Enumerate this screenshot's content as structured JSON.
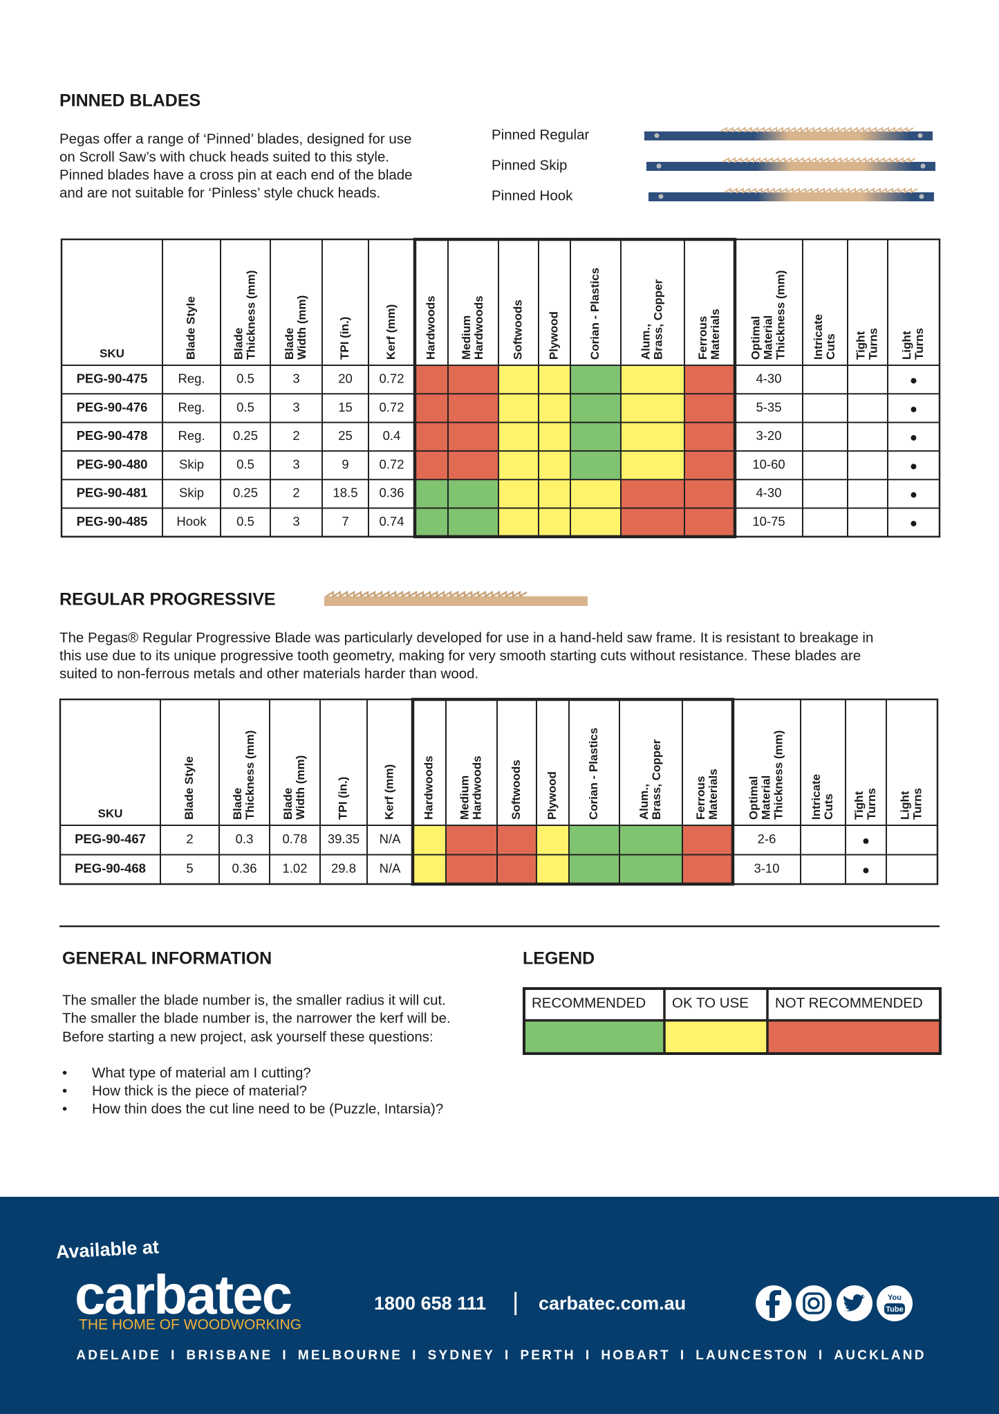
{
  "pinned": {
    "title": "PINNED BLADES",
    "text": [
      "Pegas offer a range of ‘Pinned’ blades, designed for use",
      "on Scroll Saw’s with chuck heads suited to this style.",
      "Pinned blades have a cross pin at each end of the blade",
      "and are not suitable for ‘Pinless’ style chuck heads."
    ],
    "blades": [
      "Pinned Regular",
      "Pinned Skip",
      "Pinned Hook"
    ]
  },
  "pinned_table": {
    "columns": [
      [
        "SKU"
      ],
      [
        "Blade Style"
      ],
      [
        "Blade",
        "Thickness (mm)"
      ],
      [
        "Blade",
        "Width (mm)"
      ],
      [
        "TPI (in.)"
      ],
      [
        "Kerf (mm)"
      ],
      [
        "Hardwoods"
      ],
      [
        "Medium",
        "Hardwoods"
      ],
      [
        "Softwoods"
      ],
      [
        "Plywood"
      ],
      [
        "Corian  - Plastics"
      ],
      [
        "Alum.,",
        "Brass, Copper"
      ],
      [
        "Ferrous",
        "Materials"
      ],
      [
        "Optimal",
        "Material",
        "Thickness (mm)"
      ],
      [
        "Intricate",
        "Cuts"
      ],
      [
        "Tight",
        "Turns"
      ],
      [
        "Light",
        "Turns"
      ]
    ],
    "rows": [
      {
        "cells": [
          "PEG-90-475",
          "Reg.",
          0.5,
          3,
          20,
          0.72
        ],
        "colors": [
          "#e06b52",
          "#e06b52",
          "#fff36b",
          "#fff36b",
          "#80c371",
          "#fff36b",
          "#e06b52"
        ],
        "optimal": "4-30",
        "marks": [
          null,
          null,
          "●"
        ]
      },
      {
        "cells": [
          "PEG-90-476",
          "Reg.",
          0.5,
          3,
          15,
          0.72
        ],
        "colors": [
          "#e06b52",
          "#e06b52",
          "#fff36b",
          "#fff36b",
          "#80c371",
          "#fff36b",
          "#e06b52"
        ],
        "optimal": "5-35",
        "marks": [
          null,
          null,
          "●"
        ]
      },
      {
        "cells": [
          "PEG-90-478",
          "Reg.",
          0.25,
          2,
          25,
          0.4
        ],
        "colors": [
          "#e06b52",
          "#e06b52",
          "#fff36b",
          "#fff36b",
          "#80c371",
          "#fff36b",
          "#e06b52"
        ],
        "optimal": "3-20",
        "marks": [
          null,
          null,
          "●"
        ]
      },
      {
        "cells": [
          "PEG-90-480",
          "Skip",
          0.5,
          3,
          9,
          0.72
        ],
        "colors": [
          "#e06b52",
          "#e06b52",
          "#fff36b",
          "#fff36b",
          "#80c371",
          "#fff36b",
          "#e06b52"
        ],
        "optimal": "10-60",
        "marks": [
          null,
          null,
          "●"
        ]
      },
      {
        "cells": [
          "PEG-90-481",
          "Skip",
          0.25,
          2,
          18.5,
          0.36
        ],
        "colors": [
          "#80c371",
          "#80c371",
          "#fff36b",
          "#fff36b",
          "#fff36b",
          "#e06b52",
          "#e06b52"
        ],
        "optimal": "4-30",
        "marks": [
          null,
          null,
          "●"
        ]
      },
      {
        "cells": [
          "PEG-90-485",
          "Hook",
          0.5,
          3,
          7,
          0.74
        ],
        "colors": [
          "#80c371",
          "#80c371",
          "#fff36b",
          "#fff36b",
          "#fff36b",
          "#e06b52",
          "#e06b52"
        ],
        "optimal": "10-75",
        "marks": [
          null,
          null,
          "●"
        ]
      }
    ]
  },
  "progressive": {
    "title": "REGULAR PROGRESSIVE",
    "text": [
      "The Pegas® Regular Progressive Blade was particularly developed for use in a hand-held saw frame. It is resistant to breakage in",
      "this use due to its unique progressive tooth geometry, making for very smooth starting cuts without resistance. These blades are",
      "suited to non-ferrous metals and other materials harder than wood."
    ]
  },
  "progressive_table": {
    "columns": [
      [
        "SKU"
      ],
      [
        "Blade Style"
      ],
      [
        "Blade",
        "Thickness (mm)"
      ],
      [
        "Blade",
        "Width (mm)"
      ],
      [
        "TPI (in.)"
      ],
      [
        "Kerf (mm)"
      ],
      [
        "Hardwoods"
      ],
      [
        "Medium",
        "Hardwoods"
      ],
      [
        "Softwoods"
      ],
      [
        "Plywood"
      ],
      [
        "Corian  - Plastics"
      ],
      [
        "Alum.,",
        "Brass, Copper"
      ],
      [
        "Ferrous",
        "Materials"
      ],
      [
        "Optimal",
        "Material",
        "Thickness (mm)"
      ],
      [
        "Intricate",
        "Cuts"
      ],
      [
        "Tight",
        "Turns"
      ],
      [
        "Light",
        "Turns"
      ]
    ],
    "rows": [
      {
        "cells": [
          "PEG-90-467",
          2,
          0.3,
          0.78,
          39.35,
          "N/A"
        ],
        "colors": [
          "#fff36b",
          "#e06b52",
          "#e06b52",
          "#fff36b",
          "#80c371",
          "#80c371",
          "#e06b52"
        ],
        "optimal": "2-6",
        "marks": [
          null,
          "●",
          null
        ]
      },
      {
        "cells": [
          "PEG-90-468",
          5,
          0.36,
          1.02,
          29.8,
          "N/A"
        ],
        "colors": [
          "#fff36b",
          "#e06b52",
          "#e06b52",
          "#fff36b",
          "#80c371",
          "#80c371",
          "#e06b52"
        ],
        "optimal": "3-10",
        "marks": [
          null,
          "●",
          null
        ]
      }
    ]
  },
  "general": {
    "title": "GENERAL INFORMATION",
    "lines": [
      "The smaller the blade number is, the smaller radius it will cut.",
      "The smaller the blade number is, the narrower the kerf will be."
    ],
    "question_intro": "Before starting a new project, ask yourself these questions:",
    "bullet": "•",
    "questions": [
      "What type of material am I cutting?",
      "How thick is the piece of material?",
      "How thin does the cut line need to be (Puzzle, Intarsia)?"
    ]
  },
  "legend": {
    "title": "LEGEND",
    "items": [
      {
        "label": "RECOMMENDED",
        "color": "#80c371"
      },
      {
        "label": "OK TO USE",
        "color": "#fff36b"
      },
      {
        "label": "NOT RECOMMENDED",
        "color": "#e06b52"
      }
    ]
  },
  "footer": {
    "available": "Available at",
    "brand": "carbatec",
    "tagline": "THE HOME OF WOODWORKING",
    "phone": "1800 658 111",
    "divider": "|",
    "website": "carbatec.com.au",
    "youtube": [
      "You",
      "Tube"
    ],
    "cities": [
      "ADELAIDE",
      "BRISBANE",
      "MELBOURNE",
      "SYDNEY",
      "PERTH",
      "HOBART",
      "LAUNCESTON",
      "AUCKLAND"
    ],
    "separator": "I"
  }
}
